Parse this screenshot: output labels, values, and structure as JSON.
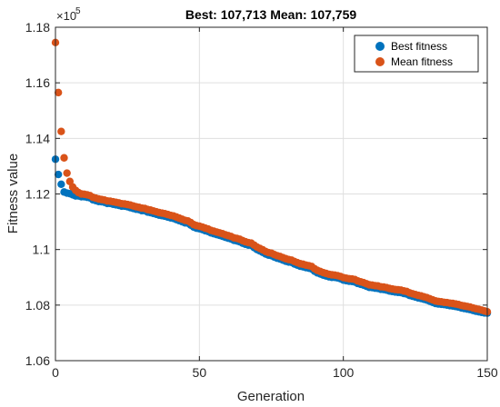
{
  "chart_data": {
    "type": "scatter",
    "title": "Best: 107,713 Mean: 107,759",
    "xlabel": "Generation",
    "ylabel": "Fitness value",
    "xlim": [
      0,
      150
    ],
    "ylim": [
      106000,
      118000
    ],
    "xticks": [
      0,
      50,
      100,
      150
    ],
    "xtick_labels": [
      "0",
      "50",
      "100",
      "150"
    ],
    "yticks": [
      106000,
      108000,
      110000,
      112000,
      114000,
      116000,
      118000
    ],
    "ytick_labels": [
      "1.06",
      "1.08",
      "1.1",
      "1.12",
      "1.14",
      "1.16",
      "1.18"
    ],
    "y_exponent_label": "×10",
    "y_exponent_power": "5",
    "grid": true,
    "legend": {
      "position": "top-right",
      "entries": [
        "Best fitness",
        "Mean fitness"
      ]
    },
    "series": [
      {
        "name": "Best fitness",
        "color": "#0072BD",
        "x": [
          0,
          1,
          2,
          3,
          4,
          5,
          6,
          7,
          8,
          9,
          10,
          11,
          12,
          13,
          14,
          15,
          16,
          17,
          18,
          19,
          20,
          21,
          22,
          23,
          24,
          25,
          26,
          27,
          28,
          29,
          30,
          31,
          32,
          33,
          34,
          35,
          36,
          37,
          38,
          39,
          40,
          41,
          42,
          43,
          44,
          45,
          46,
          47,
          48,
          49,
          50,
          51,
          52,
          53,
          54,
          55,
          56,
          57,
          58,
          59,
          60,
          61,
          62,
          63,
          64,
          65,
          66,
          67,
          68,
          69,
          70,
          71,
          72,
          73,
          74,
          75,
          76,
          77,
          78,
          79,
          80,
          81,
          82,
          83,
          84,
          85,
          86,
          87,
          88,
          89,
          90,
          91,
          92,
          93,
          94,
          95,
          96,
          97,
          98,
          99,
          100,
          101,
          102,
          103,
          104,
          105,
          106,
          107,
          108,
          109,
          110,
          111,
          112,
          113,
          114,
          115,
          116,
          117,
          118,
          119,
          120,
          121,
          122,
          123,
          124,
          125,
          126,
          127,
          128,
          129,
          130,
          131,
          132,
          133,
          134,
          135,
          136,
          137,
          138,
          139,
          140,
          141,
          142,
          143,
          144,
          145,
          146,
          147,
          148,
          149,
          150
        ],
        "values": [
          113250,
          112700,
          112350,
          112070,
          112030,
          112010,
          111970,
          111930,
          111930,
          111900,
          111900,
          111880,
          111860,
          111790,
          111760,
          111730,
          111720,
          111700,
          111660,
          111660,
          111630,
          111610,
          111590,
          111560,
          111560,
          111540,
          111510,
          111480,
          111450,
          111440,
          111400,
          111400,
          111350,
          111330,
          111300,
          111270,
          111240,
          111220,
          111200,
          111170,
          111140,
          111120,
          111080,
          111040,
          111000,
          110960,
          110950,
          110880,
          110810,
          110770,
          110750,
          110720,
          110680,
          110650,
          110600,
          110570,
          110540,
          110510,
          110480,
          110440,
          110410,
          110380,
          110330,
          110310,
          110280,
          110230,
          110190,
          110160,
          110150,
          110070,
          110000,
          109950,
          109900,
          109840,
          109800,
          109780,
          109730,
          109690,
          109660,
          109620,
          109580,
          109550,
          109540,
          109480,
          109440,
          109400,
          109380,
          109350,
          109330,
          109300,
          109220,
          109160,
          109120,
          109080,
          109050,
          109020,
          109000,
          109000,
          108980,
          108950,
          108900,
          108880,
          108860,
          108850,
          108830,
          108780,
          108750,
          108720,
          108680,
          108640,
          108630,
          108610,
          108600,
          108570,
          108560,
          108540,
          108510,
          108490,
          108470,
          108460,
          108450,
          108420,
          108400,
          108350,
          108320,
          108290,
          108260,
          108240,
          108210,
          108180,
          108140,
          108100,
          108060,
          108040,
          108030,
          108020,
          108000,
          107980,
          107970,
          107950,
          107930,
          107900,
          107880,
          107860,
          107840,
          107810,
          107780,
          107760,
          107740,
          107720,
          107713
        ]
      },
      {
        "name": "Mean fitness",
        "color": "#D95319",
        "x": [
          0,
          1,
          2,
          3,
          4,
          5,
          6,
          7,
          8,
          9,
          10,
          11,
          12,
          13,
          14,
          15,
          16,
          17,
          18,
          19,
          20,
          21,
          22,
          23,
          24,
          25,
          26,
          27,
          28,
          29,
          30,
          31,
          32,
          33,
          34,
          35,
          36,
          37,
          38,
          39,
          40,
          41,
          42,
          43,
          44,
          45,
          46,
          47,
          48,
          49,
          50,
          51,
          52,
          53,
          54,
          55,
          56,
          57,
          58,
          59,
          60,
          61,
          62,
          63,
          64,
          65,
          66,
          67,
          68,
          69,
          70,
          71,
          72,
          73,
          74,
          75,
          76,
          77,
          78,
          79,
          80,
          81,
          82,
          83,
          84,
          85,
          86,
          87,
          88,
          89,
          90,
          91,
          92,
          93,
          94,
          95,
          96,
          97,
          98,
          99,
          100,
          101,
          102,
          103,
          104,
          105,
          106,
          107,
          108,
          109,
          110,
          111,
          112,
          113,
          114,
          115,
          116,
          117,
          118,
          119,
          120,
          121,
          122,
          123,
          124,
          125,
          126,
          127,
          128,
          129,
          130,
          131,
          132,
          133,
          134,
          135,
          136,
          137,
          138,
          139,
          140,
          141,
          142,
          143,
          144,
          145,
          146,
          147,
          148,
          149,
          150
        ],
        "values": [
          117450,
          115650,
          114250,
          113300,
          112750,
          112450,
          112250,
          112130,
          112050,
          112000,
          111990,
          111970,
          111940,
          111880,
          111850,
          111820,
          111800,
          111780,
          111750,
          111740,
          111720,
          111700,
          111680,
          111650,
          111640,
          111620,
          111600,
          111570,
          111540,
          111520,
          111490,
          111480,
          111440,
          111420,
          111390,
          111360,
          111330,
          111310,
          111290,
          111260,
          111230,
          111210,
          111170,
          111130,
          111090,
          111050,
          111030,
          110970,
          110900,
          110860,
          110840,
          110810,
          110770,
          110740,
          110690,
          110660,
          110630,
          110600,
          110570,
          110530,
          110500,
          110470,
          110420,
          110400,
          110370,
          110320,
          110280,
          110250,
          110230,
          110160,
          110090,
          110040,
          109990,
          109930,
          109890,
          109870,
          109820,
          109780,
          109750,
          109710,
          109670,
          109640,
          109620,
          109570,
          109530,
          109490,
          109470,
          109440,
          109420,
          109390,
          109310,
          109250,
          109210,
          109170,
          109140,
          109110,
          109090,
          109080,
          109060,
          109030,
          108990,
          108970,
          108950,
          108940,
          108920,
          108870,
          108840,
          108810,
          108770,
          108730,
          108720,
          108700,
          108690,
          108660,
          108650,
          108630,
          108600,
          108580,
          108560,
          108550,
          108540,
          108510,
          108490,
          108440,
          108410,
          108380,
          108350,
          108330,
          108300,
          108270,
          108230,
          108190,
          108150,
          108130,
          108120,
          108100,
          108090,
          108070,
          108060,
          108040,
          108020,
          107990,
          107970,
          107950,
          107930,
          107900,
          107870,
          107850,
          107820,
          107790,
          107759
        ]
      }
    ]
  }
}
